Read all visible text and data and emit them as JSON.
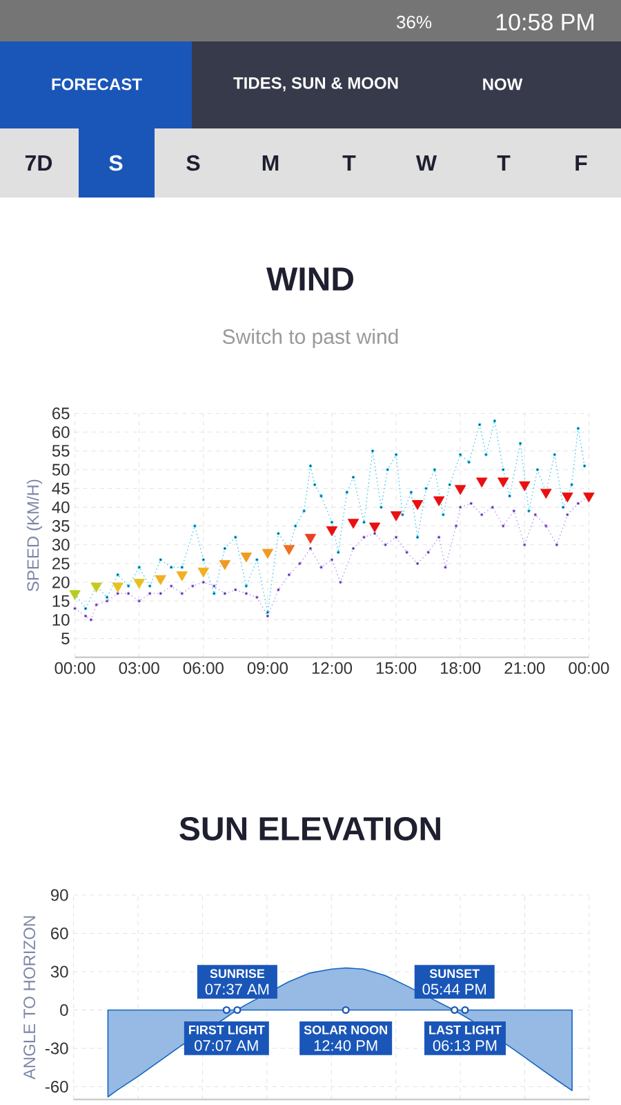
{
  "chart_data": [
    {
      "type": "line",
      "title": "WIND",
      "subtitle": "Switch to past wind",
      "ylabel": "SPEED (KM/H)",
      "annotations": [
        "36%",
        "10:58 PM",
        "FORECAST",
        "TIDES, SUN & MOON",
        "NOW",
        "7D",
        "S",
        "S",
        "M",
        "T",
        "W",
        "T",
        "F"
      ],
      "xlim": [
        0,
        24
      ],
      "xticks": [
        {
          "value": 0,
          "label": "00:00"
        },
        {
          "value": 3,
          "label": "03:00"
        },
        {
          "value": 6,
          "label": "06:00"
        },
        {
          "value": 9,
          "label": "09:00"
        },
        {
          "value": 12,
          "label": "12:00"
        },
        {
          "value": 15,
          "label": "15:00"
        },
        {
          "value": 18,
          "label": "18:00"
        },
        {
          "value": 21,
          "label": "21:00"
        },
        {
          "value": 24,
          "label": "00:00"
        }
      ],
      "ylim": [
        0,
        65
      ],
      "yticks": [
        5,
        10,
        15,
        20,
        25,
        30,
        35,
        40,
        45,
        50,
        55,
        60,
        65
      ],
      "grid": true,
      "line_style": "dotted",
      "marker": "circle",
      "series": [
        {
          "color": "#2ec4f0",
          "x": [
            0,
            0.5,
            1,
            1.5,
            2,
            2.5,
            3,
            3.5,
            4,
            4.5,
            5,
            5.6,
            6,
            6.5,
            7,
            7.5,
            8,
            8.5,
            9,
            9.5,
            10,
            10.3,
            10.7,
            11,
            11.2,
            11.5,
            12,
            12.3,
            12.7,
            13,
            13.5,
            13.9,
            14.3,
            14.6,
            15,
            15.3,
            15.7,
            16,
            16.4,
            16.8,
            17.2,
            17.5,
            18,
            18.4,
            18.9,
            19.2,
            19.6,
            20,
            20.3,
            20.8,
            21.2,
            21.6,
            22,
            22.4,
            22.8,
            23.2,
            23.5,
            23.8
          ],
          "values": [
            17,
            13,
            19,
            16,
            22,
            19,
            24,
            19,
            26,
            24,
            24,
            35,
            26,
            17,
            29,
            32,
            19,
            26,
            12,
            33,
            29,
            35,
            39,
            51,
            46,
            43,
            36,
            28,
            44,
            48,
            36,
            55,
            40,
            50,
            54,
            38,
            44,
            32,
            45,
            50,
            38,
            46,
            54,
            52,
            62,
            54,
            63,
            50,
            43,
            57,
            39,
            50,
            44,
            54,
            40,
            46,
            61,
            51
          ]
        },
        {
          "color": "#b388f5",
          "x": [
            0,
            0.5,
            0.75,
            1,
            1.5,
            2,
            2.5,
            3,
            3.5,
            4,
            4.5,
            5,
            5.5,
            6,
            6.5,
            7,
            7.5,
            8,
            8.5,
            9,
            9.5,
            10,
            10.5,
            11,
            11.5,
            12,
            12.4,
            13,
            13.5,
            14,
            14.5,
            15,
            15.5,
            16,
            16.5,
            17,
            17.3,
            17.8,
            18,
            18.5,
            19,
            19.5,
            20,
            20.5,
            21,
            21.5,
            22,
            22.5,
            23,
            23.5,
            24
          ],
          "values": [
            13,
            11,
            10,
            14,
            15,
            17,
            17,
            15,
            17,
            17,
            19,
            17,
            19,
            20,
            19,
            17,
            18,
            17,
            16,
            11,
            18,
            22,
            25,
            29,
            24,
            26,
            20,
            29,
            32,
            33,
            30,
            32,
            28,
            25,
            28,
            32,
            24,
            35,
            40,
            41,
            38,
            40,
            35,
            39,
            30,
            38,
            35,
            30,
            38,
            41,
            43
          ]
        },
        {
          "type": "scatter",
          "marker": "triangle",
          "x": [
            0,
            1,
            2,
            3,
            4,
            5,
            6,
            7,
            8,
            9,
            10,
            11,
            12,
            13,
            14,
            15,
            16,
            17,
            18,
            19,
            20,
            21,
            22,
            23,
            24
          ],
          "values": [
            17,
            19,
            19,
            20,
            21,
            22,
            23,
            25,
            27,
            28,
            29,
            32,
            34,
            36,
            35,
            38,
            41,
            42,
            45,
            47,
            47,
            46,
            44,
            43,
            43
          ],
          "colors": [
            "#b8cc20",
            "#c8c820",
            "#e8c020",
            "#e8c020",
            "#f0b020",
            "#f0b020",
            "#f0b020",
            "#f09a20",
            "#f09a20",
            "#f09a20",
            "#f07020",
            "#e84020",
            "#e81010",
            "#e81010",
            "#e81010",
            "#e81010",
            "#e81010",
            "#e81010",
            "#e81010",
            "#e81010",
            "#e81010",
            "#e81010",
            "#e81010",
            "#e81010",
            "#e81010"
          ]
        }
      ]
    },
    {
      "type": "area",
      "title": "SUN ELEVATION",
      "ylabel": "ANGLE TO HORIZON",
      "tick_labels": "y",
      "grid": true,
      "xlim": [
        0,
        24
      ],
      "xticks": [
        {
          "value": 0,
          "label": null
        },
        {
          "value": 3,
          "label": null
        },
        {
          "value": 6,
          "label": null
        },
        {
          "value": 9,
          "label": null
        },
        {
          "value": 12,
          "label": null
        },
        {
          "value": 15,
          "label": null
        },
        {
          "value": 18,
          "label": null
        },
        {
          "value": 21,
          "label": null
        },
        {
          "value": 24,
          "label": null
        }
      ],
      "ylim": [
        -70,
        90
      ],
      "yticks": [
        -60,
        -30,
        0,
        30,
        60,
        90
      ],
      "annotations": [
        {
          "text": "SUNRISE",
          "x": 7.62,
          "y": 0
        },
        {
          "text": "07:37 AM",
          "x": 7.62,
          "y": 0
        },
        {
          "text": "FIRST LIGHT",
          "x": 7.12,
          "y": 0
        },
        {
          "text": "07:07 AM",
          "x": 7.12,
          "y": 0
        },
        {
          "text": "SOLAR NOON",
          "x": 12.67,
          "y": 0
        },
        {
          "text": "12:40 PM",
          "x": 12.67,
          "y": 0
        },
        {
          "text": "SUNSET",
          "x": 17.73,
          "y": 0
        },
        {
          "text": "05:44 PM",
          "x": 17.73,
          "y": 0
        },
        {
          "text": "LAST LIGHT",
          "x": 18.22,
          "y": 0
        },
        {
          "text": "06:13 PM",
          "x": 18.22,
          "y": 0
        }
      ],
      "series": [
        {
          "type": "area",
          "color": "#1565c0",
          "x": [
            1.6,
            2,
            3,
            4,
            5,
            7,
            7.6,
            8,
            10,
            11,
            12,
            12.67,
            13.5,
            14.5,
            15.5,
            17.7,
            18.5,
            20.5,
            21.5,
            22.5,
            23.2
          ],
          "values": [
            -68,
            -63,
            -52,
            -40,
            -28,
            -7,
            0,
            4,
            22,
            29,
            32,
            33,
            32,
            27,
            19,
            0,
            -8,
            -31,
            -43,
            -55,
            -63
          ]
        },
        {
          "type": "scatter",
          "marker": "circle",
          "color": "#1a56b8",
          "x": [
            7.12,
            7.62,
            12.67,
            17.73,
            18.22
          ],
          "values": [
            0,
            0,
            0,
            0,
            0
          ]
        }
      ]
    }
  ]
}
